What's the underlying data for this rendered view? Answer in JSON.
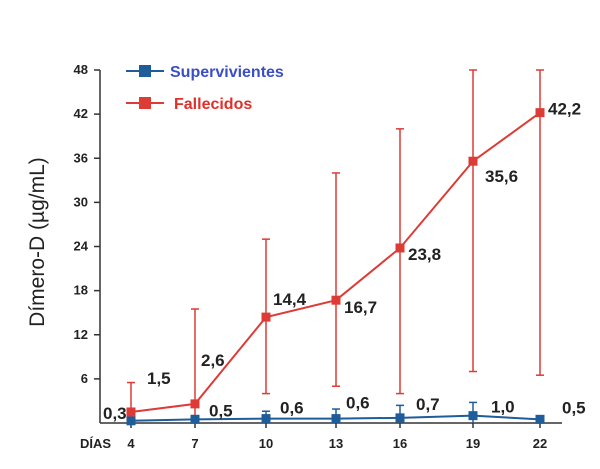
{
  "chart_data": {
    "type": "line",
    "xlabel": "DÍAS",
    "ylabel": "Dímero-D (µg/mL)",
    "x": [
      4,
      7,
      10,
      13,
      16,
      19,
      22
    ],
    "x_tick_labels": [
      "4",
      "7",
      "10",
      "13",
      "16",
      "19",
      "22"
    ],
    "ylim": [
      0,
      48
    ],
    "y_ticks": [
      6,
      12,
      18,
      24,
      30,
      36,
      42,
      48
    ],
    "y_tick_labels": [
      "6",
      "12",
      "18",
      "24",
      "30",
      "36",
      "42",
      "48"
    ],
    "legend_position": "top-left",
    "grid": false,
    "series": [
      {
        "name": "Supervivientes",
        "color": "#1f5c9a",
        "label_color": "#3b4fc4",
        "marker": "square",
        "values": [
          0.3,
          0.5,
          0.6,
          0.6,
          0.7,
          1.0,
          0.5
        ],
        "value_labels": [
          "0,3",
          "0,5",
          "0,6",
          "0,6",
          "0,7",
          "1,0",
          "0,5"
        ],
        "error_low": [
          0,
          0,
          0,
          0,
          0,
          0,
          0
        ],
        "error_high": [
          0.8,
          1.0,
          1.6,
          1.9,
          2.4,
          2.8,
          0.9
        ]
      },
      {
        "name": "Fallecidos",
        "color": "#dd3b35",
        "label_color": "#e0302a",
        "marker": "square",
        "values": [
          1.5,
          2.6,
          14.4,
          16.7,
          23.8,
          35.6,
          42.2
        ],
        "value_labels": [
          "1,5",
          "2,6",
          "14,4",
          "16,7",
          "23,8",
          "35,6",
          "42,2"
        ],
        "error_low": [
          0,
          0,
          4.0,
          5.0,
          4.0,
          7.0,
          6.5
        ],
        "error_high": [
          5.5,
          15.5,
          25.0,
          34.0,
          40.0,
          48.0,
          48.0
        ]
      }
    ]
  }
}
